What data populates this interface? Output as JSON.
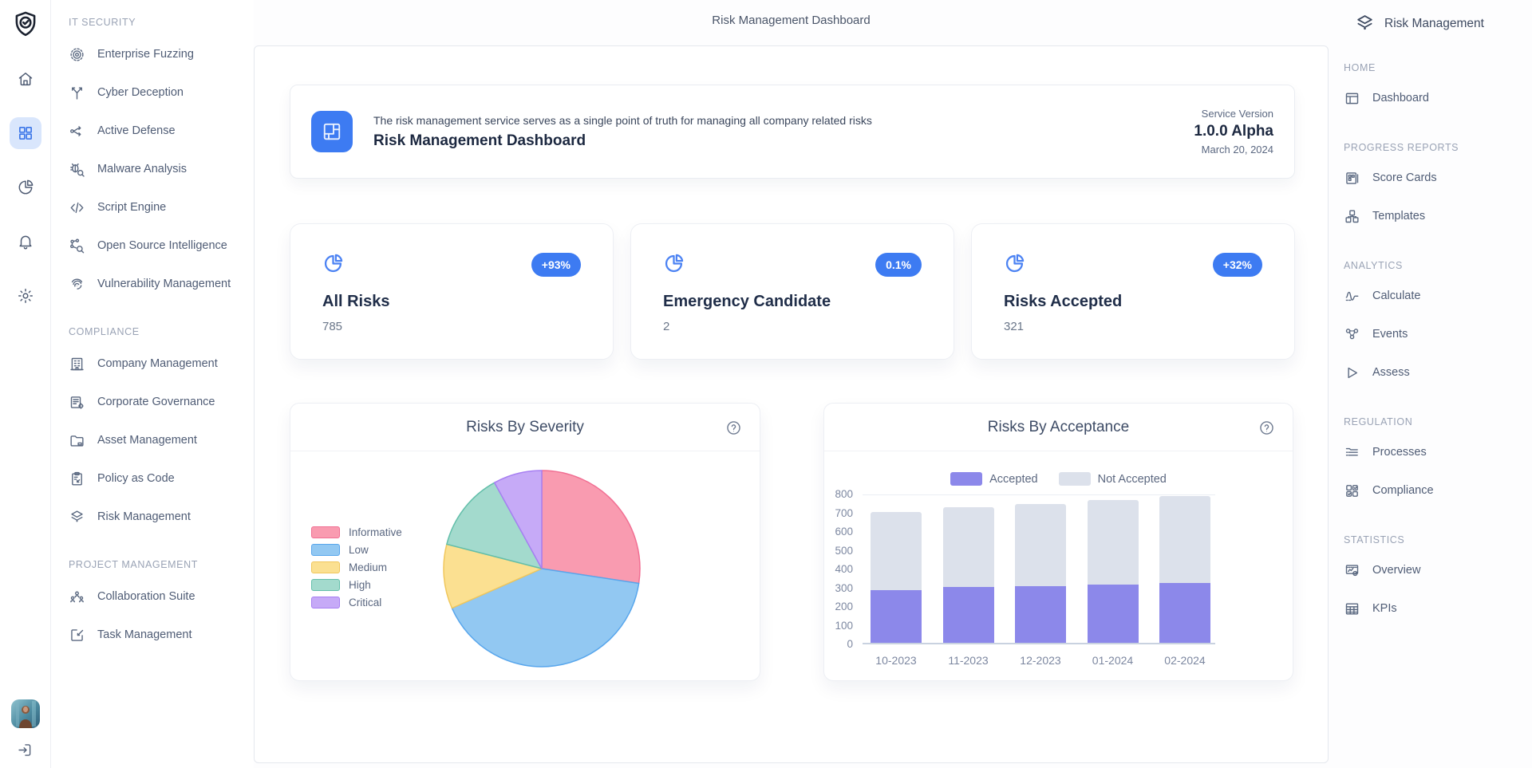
{
  "page": {
    "top_title": "Risk Management Dashboard"
  },
  "theme": {
    "accent": "#3D7BF2",
    "rail_active_bg": "#D9E6FC",
    "badge_bg": "#3D7BF2",
    "badge_text": "#FFFFFF"
  },
  "rail": {
    "logo_icon": "logo-shield-icon",
    "items": [
      {
        "icon": "home-icon",
        "active": false
      },
      {
        "icon": "apps-grid-icon",
        "active": true
      },
      {
        "icon": "pie-chart-icon",
        "active": false
      },
      {
        "icon": "bell-icon",
        "active": false
      },
      {
        "icon": "gear-icon",
        "active": false
      }
    ],
    "footer": [
      {
        "icon": "avatar"
      },
      {
        "icon": "logout-icon"
      }
    ]
  },
  "sidebar": {
    "sections": [
      {
        "label": "IT SECURITY",
        "items": [
          {
            "label": "Enterprise Fuzzing",
            "icon": "target-icon"
          },
          {
            "label": "Cyber Deception",
            "icon": "branch-icon"
          },
          {
            "label": "Active Defense",
            "icon": "flow-icon"
          },
          {
            "label": "Malware Analysis",
            "icon": "bug-scan-icon"
          },
          {
            "label": "Script Engine",
            "icon": "code-icon"
          },
          {
            "label": "Open Source Intelligence",
            "icon": "network-search-icon"
          },
          {
            "label": "Vulnerability Management",
            "icon": "fingerprint-icon"
          }
        ]
      },
      {
        "label": "COMPLIANCE",
        "items": [
          {
            "label": "Company Management",
            "icon": "building-icon"
          },
          {
            "label": "Corporate Governance",
            "icon": "document-gear-icon"
          },
          {
            "label": "Asset Management",
            "icon": "folder-icon"
          },
          {
            "label": "Policy as Code",
            "icon": "clipboard-icon"
          },
          {
            "label": "Risk Management",
            "icon": "layers-eye-icon"
          }
        ]
      },
      {
        "label": "PROJECT MANAGEMENT",
        "items": [
          {
            "label": "Collaboration Suite",
            "icon": "team-icon"
          },
          {
            "label": "Task Management",
            "icon": "edit-square-icon"
          }
        ]
      }
    ]
  },
  "hero": {
    "icon": "dashboard-layout-icon",
    "description": "The risk management service serves as a single point of truth for managing all company related risks",
    "title": "Risk Management Dashboard",
    "version_label": "Service Version",
    "version_value": "1.0.0 Alpha",
    "version_date": "March 20, 2024"
  },
  "stats": [
    {
      "icon": "pie-chart-icon",
      "badge": "+93%",
      "title": "All Risks",
      "value": "785"
    },
    {
      "icon": "pie-chart-icon",
      "badge": "0.1%",
      "title": "Emergency Candidate",
      "value": "2"
    },
    {
      "icon": "pie-chart-icon",
      "badge": "+32%",
      "title": "Risks Accepted",
      "value": "321"
    }
  ],
  "chart_data": [
    {
      "type": "pie",
      "title": "Risks By Severity",
      "help_icon": "question-icon",
      "labels": [
        "Informative",
        "Low",
        "Medium",
        "High",
        "Critical"
      ],
      "values": [
        27.4,
        41.0,
        10.6,
        13.0,
        8.0
      ],
      "unit": "percent",
      "colors": [
        "#F99BB0",
        "#92C8F2",
        "#FBE091",
        "#A3DACD",
        "#C6AAF7"
      ],
      "border_colors": [
        "#F16F93",
        "#58A6EC",
        "#F0C75C",
        "#63BFAA",
        "#A77FF2"
      ],
      "legend_position": "left"
    },
    {
      "type": "bar",
      "title": "Risks By Acceptance",
      "help_icon": "question-icon",
      "stacked": true,
      "categories": [
        "10-2023",
        "11-2023",
        "12-2023",
        "01-2024",
        "02-2024"
      ],
      "series": [
        {
          "name": "Accepted",
          "color": "#8C88EA",
          "values": [
            280,
            298,
            302,
            312,
            320
          ]
        },
        {
          "name": "Not Accepted",
          "color": "#DCE1EB",
          "values": [
            420,
            424,
            440,
            452,
            463
          ]
        }
      ],
      "ylim": [
        0,
        800
      ],
      "yticks": [
        0,
        100,
        200,
        300,
        400,
        500,
        600,
        700,
        800
      ],
      "grid": "minimal",
      "legend_position": "top"
    }
  ],
  "right_nav": {
    "icon": "layers-eye-icon",
    "title": "Risk Management",
    "sections": [
      {
        "label": "HOME",
        "items": [
          {
            "label": "Dashboard",
            "icon": "dashboard-icon"
          }
        ]
      },
      {
        "label": "PROGRESS REPORTS",
        "items": [
          {
            "label": "Score Cards",
            "icon": "score-cards-icon"
          },
          {
            "label": "Templates",
            "icon": "templates-icon"
          }
        ]
      },
      {
        "label": "ANALYTICS",
        "items": [
          {
            "label": "Calculate",
            "icon": "calculate-icon"
          },
          {
            "label": "Events",
            "icon": "events-icon"
          },
          {
            "label": "Assess",
            "icon": "assess-icon"
          }
        ]
      },
      {
        "label": "REGULATION",
        "items": [
          {
            "label": "Processes",
            "icon": "processes-icon"
          },
          {
            "label": "Compliance",
            "icon": "compliance-icon"
          }
        ]
      },
      {
        "label": "STATISTICS",
        "items": [
          {
            "label": "Overview",
            "icon": "overview-icon"
          },
          {
            "label": "KPIs",
            "icon": "kpis-icon"
          }
        ]
      }
    ]
  }
}
